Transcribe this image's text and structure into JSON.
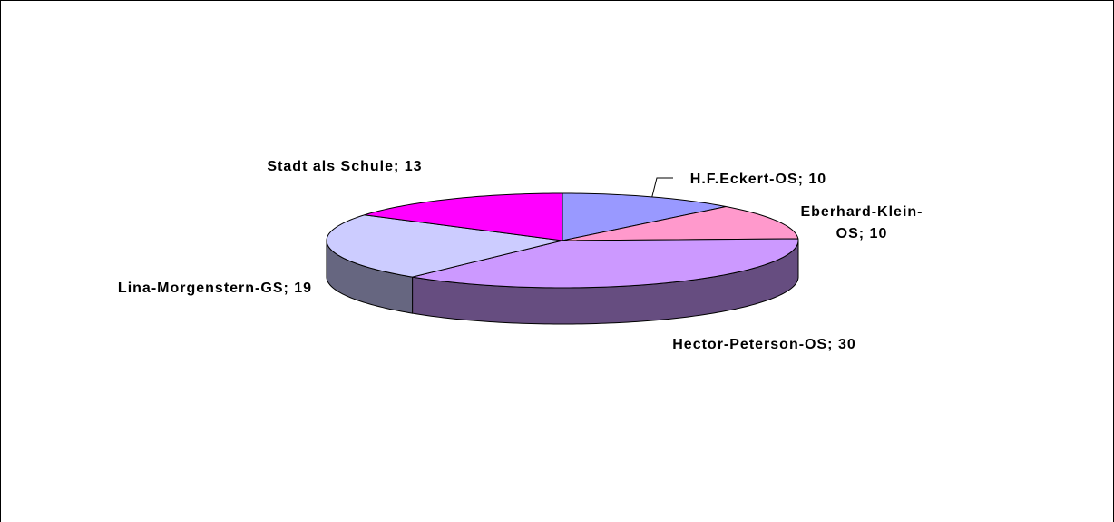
{
  "chart_data": {
    "type": "pie3d",
    "value_labels": [
      "H.F.Eckert-OS; 10",
      "Eberhard-Klein-OS; 10",
      "Hector-Peterson-OS; 30",
      "Lina-Morgenstern-GS; 19",
      "Stadt als Schule; 13"
    ],
    "values": [
      10,
      10,
      30,
      19,
      13
    ],
    "colors": [
      "#9999ff",
      "#ff99cc",
      "#cc99ff",
      "#ccccff",
      "#ff00ff"
    ]
  }
}
